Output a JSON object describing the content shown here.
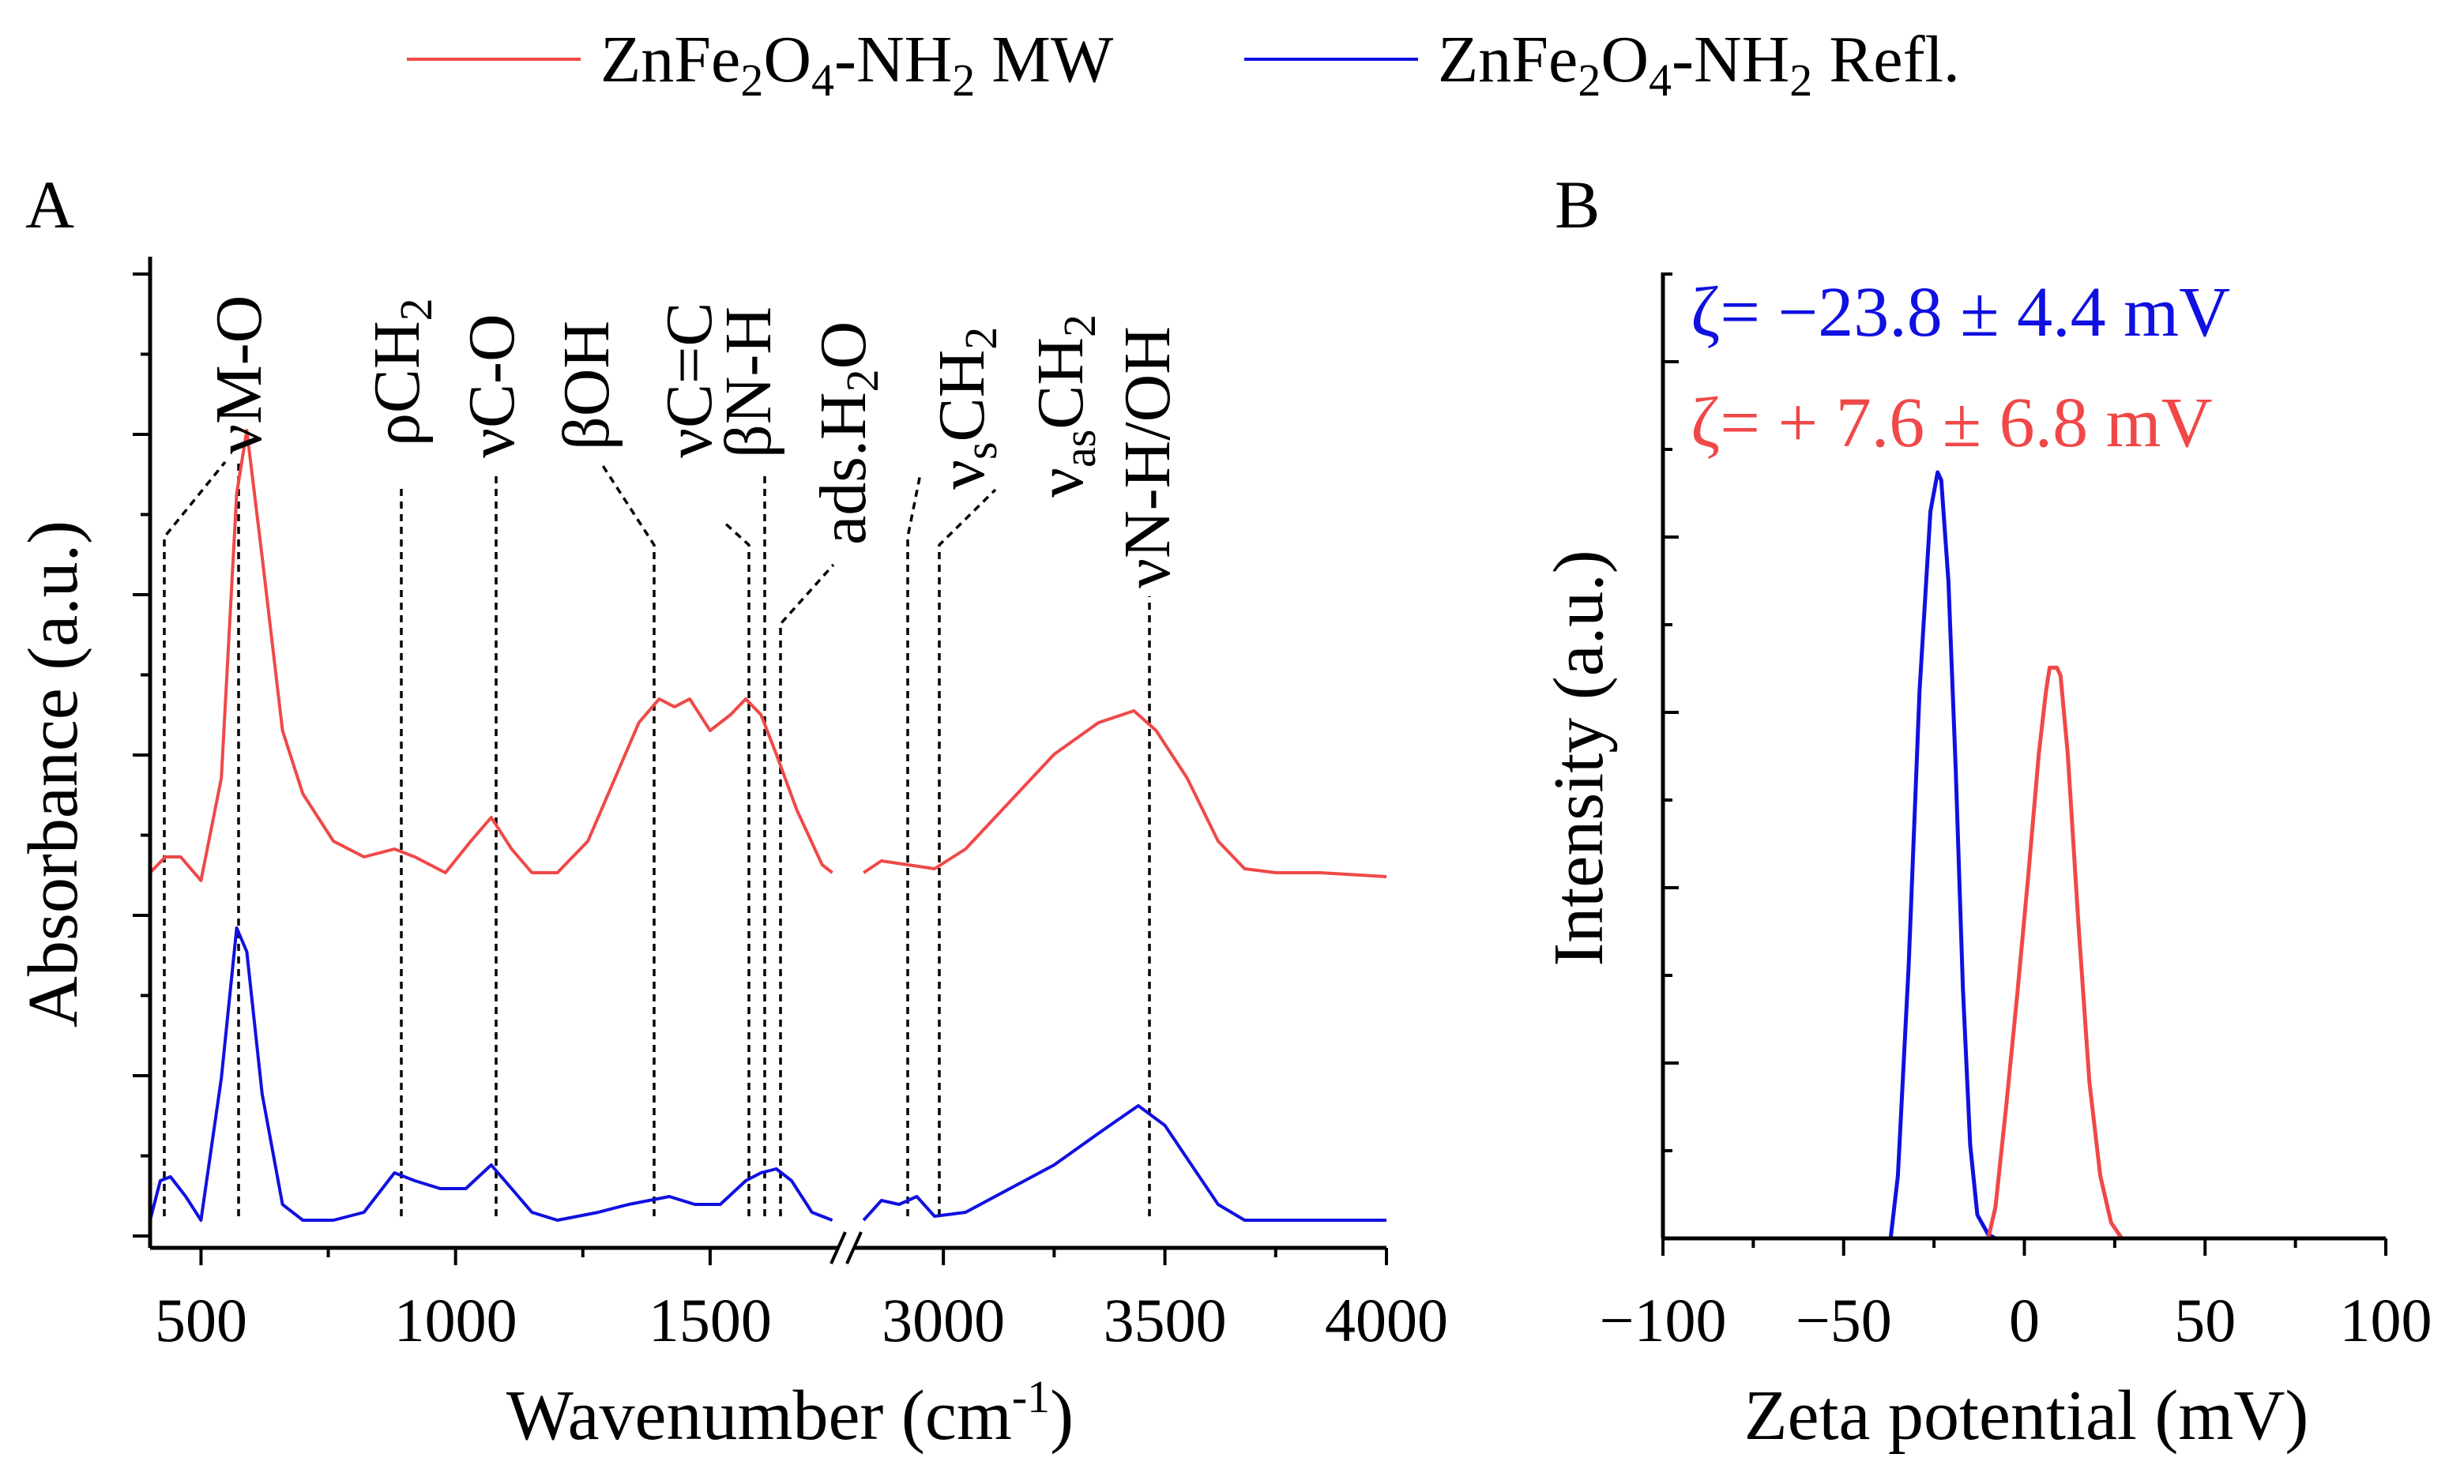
{
  "legend": [
    {
      "name": "ZnFe2O4-NH2 MW",
      "color": "#f04848"
    },
    {
      "name": "ZnFe2O4-NH2 Refl.",
      "color": "#1010e0"
    }
  ],
  "panelA": {
    "label": "A",
    "xlabel": "Wavenumber (cm-1)",
    "ylabel": "Absorbance (a.u.)"
  },
  "panelB": {
    "label": "B",
    "xlabel": "Zeta potential (mV)",
    "ylabel": "Intensity (a.u.)",
    "zeta_refl": "ζ= −23.8 ± 4.4 mV",
    "zeta_mw": "ζ= + 7.6 ± 6.8 mV"
  },
  "colors": {
    "mw": "#f04848",
    "refl": "#1010e0"
  },
  "chart_data": [
    {
      "type": "line",
      "title": "A",
      "xlabel": "Wavenumber (cm-1)",
      "ylabel": "Absorbance (a.u.)",
      "xlim": [
        400,
        4000
      ],
      "x_break": [
        1750,
        2800
      ],
      "xticks": [
        500,
        1000,
        1500,
        3000,
        3500,
        4000
      ],
      "ylim": [
        0,
        1.2
      ],
      "series": [
        {
          "name": "ZnFe2O4-NH2 MW",
          "color": "#f04848",
          "x": [
            400,
            430,
            460,
            500,
            540,
            570,
            590,
            620,
            660,
            700,
            760,
            820,
            880,
            920,
            980,
            1030,
            1070,
            1110,
            1150,
            1200,
            1260,
            1320,
            1360,
            1400,
            1430,
            1460,
            1500,
            1540,
            1570,
            1600,
            1630,
            1670,
            1720,
            1740,
            2820,
            2860,
            2920,
            2980,
            3050,
            3150,
            3250,
            3350,
            3430,
            3480,
            3550,
            3620,
            3680,
            3750,
            3850,
            4000
          ],
          "values": [
            0.44,
            0.46,
            0.46,
            0.43,
            0.56,
            0.92,
            1.0,
            0.84,
            0.62,
            0.54,
            0.48,
            0.46,
            0.47,
            0.46,
            0.44,
            0.48,
            0.51,
            0.47,
            0.44,
            0.44,
            0.48,
            0.57,
            0.63,
            0.66,
            0.65,
            0.66,
            0.62,
            0.64,
            0.66,
            0.64,
            0.59,
            0.52,
            0.45,
            0.44,
            0.44,
            0.455,
            0.45,
            0.445,
            0.47,
            0.53,
            0.59,
            0.63,
            0.645,
            0.62,
            0.56,
            0.48,
            0.445,
            0.44,
            0.44,
            0.435
          ]
        },
        {
          "name": "ZnFe2O4-NH2 Refl.",
          "color": "#1010e0",
          "x": [
            400,
            420,
            440,
            470,
            500,
            540,
            570,
            590,
            620,
            660,
            700,
            760,
            820,
            880,
            920,
            970,
            1020,
            1070,
            1110,
            1150,
            1200,
            1280,
            1340,
            1380,
            1420,
            1470,
            1520,
            1570,
            1600,
            1630,
            1660,
            1700,
            1740,
            2820,
            2860,
            2900,
            2940,
            2980,
            3050,
            3150,
            3250,
            3350,
            3440,
            3500,
            3560,
            3620,
            3680,
            3750,
            3850,
            4000
          ],
          "values": [
            0.0,
            0.05,
            0.055,
            0.03,
            0.0,
            0.18,
            0.37,
            0.34,
            0.16,
            0.02,
            0.0,
            0.0,
            0.01,
            0.06,
            0.05,
            0.04,
            0.04,
            0.07,
            0.04,
            0.01,
            0.0,
            0.01,
            0.02,
            0.025,
            0.03,
            0.02,
            0.02,
            0.05,
            0.06,
            0.065,
            0.05,
            0.01,
            0.0,
            0.0,
            0.025,
            0.02,
            0.03,
            0.005,
            0.01,
            0.04,
            0.07,
            0.11,
            0.145,
            0.12,
            0.07,
            0.02,
            0.0,
            0.0,
            0.0,
            0.0
          ]
        }
      ],
      "annotations": [
        "νM-O",
        "ρCH2",
        "νC-O",
        "βOH",
        "νC=C",
        "βN-H",
        "ads.H2O",
        "νsCH2",
        "νasCH2",
        "νN-H/OH"
      ]
    },
    {
      "type": "line",
      "title": "B",
      "xlabel": "Zeta potential (mV)",
      "ylabel": "Intensity (a.u.)",
      "xlim": [
        -100,
        100
      ],
      "xticks": [
        -100,
        -50,
        0,
        50,
        100
      ],
      "ylim": [
        0,
        1.0
      ],
      "series": [
        {
          "name": "ZnFe2O4-NH2 Refl.",
          "color": "#1010e0",
          "x": [
            -100,
            -37,
            -35,
            -32,
            -29,
            -26,
            -24,
            -23,
            -21,
            -19,
            -17,
            -15,
            -13,
            -10,
            -8,
            100
          ],
          "values": [
            0,
            0,
            0.08,
            0.35,
            0.7,
            0.93,
            0.98,
            0.97,
            0.84,
            0.6,
            0.32,
            0.12,
            0.03,
            0.005,
            0,
            0
          ]
        },
        {
          "name": "ZnFe2O4-NH2 MW",
          "color": "#f04848",
          "x": [
            -100,
            -10,
            -8,
            -5,
            -2,
            1,
            4,
            6,
            7,
            9,
            10,
            12,
            15,
            18,
            21,
            24,
            27,
            100
          ],
          "values": [
            0,
            0,
            0.04,
            0.17,
            0.31,
            0.46,
            0.62,
            0.7,
            0.73,
            0.73,
            0.72,
            0.62,
            0.4,
            0.2,
            0.08,
            0.02,
            0,
            0
          ]
        }
      ]
    }
  ]
}
